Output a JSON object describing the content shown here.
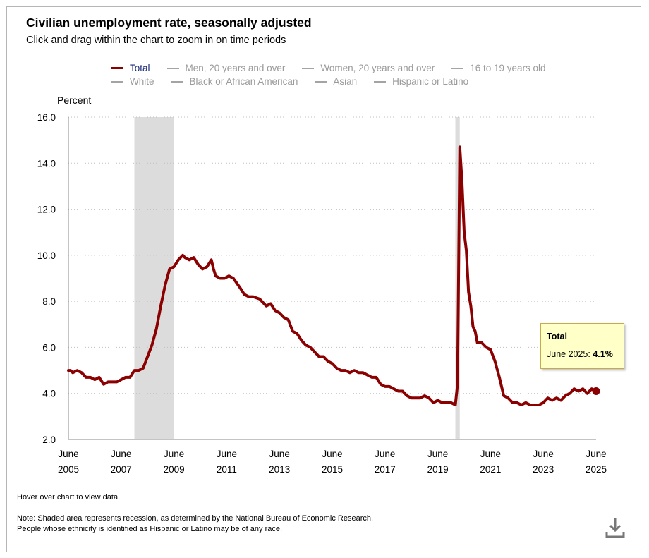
{
  "chart_data": {
    "type": "line",
    "title": "Civilian unemployment rate, seasonally adjusted",
    "subtitle": "Click and drag within the chart to zoom in on time periods",
    "ylabel": "Percent",
    "xlabel": "",
    "ylim": [
      2.0,
      16.0
    ],
    "yticks": [
      "2.0",
      "4.0",
      "6.0",
      "8.0",
      "10.0",
      "12.0",
      "14.0",
      "16.0"
    ],
    "xticks": [
      {
        "month": "June",
        "year": "2005"
      },
      {
        "month": "June",
        "year": "2007"
      },
      {
        "month": "June",
        "year": "2009"
      },
      {
        "month": "June",
        "year": "2011"
      },
      {
        "month": "June",
        "year": "2013"
      },
      {
        "month": "June",
        "year": "2015"
      },
      {
        "month": "June",
        "year": "2017"
      },
      {
        "month": "June",
        "year": "2019"
      },
      {
        "month": "June",
        "year": "2021"
      },
      {
        "month": "June",
        "year": "2023"
      },
      {
        "month": "June",
        "year": "2025"
      }
    ],
    "grid": true,
    "legend": [
      {
        "label": "Total",
        "active": true
      },
      {
        "label": "Men, 20 years and over",
        "active": false
      },
      {
        "label": "Women, 20 years and over",
        "active": false
      },
      {
        "label": "16 to 19 years old",
        "active": false
      },
      {
        "label": "White",
        "active": false
      },
      {
        "label": "Black or African American",
        "active": false
      },
      {
        "label": "Asian",
        "active": false
      },
      {
        "label": "Hispanic or Latino",
        "active": false
      }
    ],
    "recessions": [
      {
        "start": 2007.917,
        "end": 2009.417
      },
      {
        "start": 2020.083,
        "end": 2020.25
      }
    ],
    "series": [
      {
        "name": "Total",
        "color": "#8b0000",
        "x": [
          2005.417,
          2005.5,
          2005.583,
          2005.75,
          2005.917,
          2006.083,
          2006.25,
          2006.417,
          2006.583,
          2006.75,
          2006.917,
          2007.083,
          2007.25,
          2007.417,
          2007.583,
          2007.75,
          2007.917,
          2008.083,
          2008.25,
          2008.417,
          2008.583,
          2008.75,
          2008.917,
          2009.083,
          2009.25,
          2009.417,
          2009.583,
          2009.75,
          2009.833,
          2010.0,
          2010.167,
          2010.333,
          2010.5,
          2010.667,
          2010.833,
          2010.917,
          2011.0,
          2011.167,
          2011.333,
          2011.5,
          2011.667,
          2011.917,
          2012.083,
          2012.25,
          2012.417,
          2012.667,
          2012.917,
          2013.083,
          2013.25,
          2013.417,
          2013.583,
          2013.75,
          2013.917,
          2014.083,
          2014.25,
          2014.417,
          2014.583,
          2014.75,
          2014.917,
          2015.083,
          2015.25,
          2015.417,
          2015.583,
          2015.75,
          2015.917,
          2016.083,
          2016.25,
          2016.417,
          2016.583,
          2016.75,
          2016.917,
          2017.083,
          2017.25,
          2017.417,
          2017.583,
          2017.75,
          2017.917,
          2018.083,
          2018.25,
          2018.417,
          2018.583,
          2018.75,
          2018.917,
          2019.083,
          2019.25,
          2019.417,
          2019.583,
          2019.75,
          2019.917,
          2020.083,
          2020.167,
          2020.25,
          2020.333,
          2020.417,
          2020.5,
          2020.583,
          2020.667,
          2020.75,
          2020.833,
          2020.917,
          2021.083,
          2021.25,
          2021.417,
          2021.583,
          2021.75,
          2021.917,
          2022.083,
          2022.25,
          2022.417,
          2022.583,
          2022.75,
          2022.917,
          2023.083,
          2023.25,
          2023.417,
          2023.583,
          2023.75,
          2023.917,
          2024.083,
          2024.25,
          2024.417,
          2024.583,
          2024.75,
          2024.917,
          2025.083,
          2025.25,
          2025.417
        ],
        "values": [
          5.0,
          5.0,
          4.9,
          5.0,
          4.9,
          4.7,
          4.7,
          4.6,
          4.7,
          4.4,
          4.5,
          4.5,
          4.5,
          4.6,
          4.7,
          4.7,
          5.0,
          5.0,
          5.1,
          5.6,
          6.1,
          6.8,
          7.8,
          8.7,
          9.4,
          9.5,
          9.8,
          10.0,
          9.9,
          9.8,
          9.9,
          9.6,
          9.4,
          9.5,
          9.8,
          9.4,
          9.1,
          9.0,
          9.0,
          9.1,
          9.0,
          8.6,
          8.3,
          8.2,
          8.2,
          8.1,
          7.8,
          7.9,
          7.6,
          7.5,
          7.3,
          7.2,
          6.7,
          6.6,
          6.3,
          6.1,
          6.0,
          5.8,
          5.6,
          5.6,
          5.4,
          5.3,
          5.1,
          5.0,
          5.0,
          4.9,
          5.0,
          4.9,
          4.9,
          4.8,
          4.7,
          4.7,
          4.4,
          4.3,
          4.3,
          4.2,
          4.1,
          4.1,
          3.9,
          3.8,
          3.8,
          3.8,
          3.9,
          3.8,
          3.6,
          3.7,
          3.6,
          3.6,
          3.6,
          3.5,
          4.4,
          14.7,
          13.2,
          11.0,
          10.2,
          8.4,
          7.8,
          6.9,
          6.7,
          6.2,
          6.2,
          6.0,
          5.9,
          5.4,
          4.7,
          3.9,
          3.8,
          3.6,
          3.6,
          3.5,
          3.6,
          3.5,
          3.5,
          3.5,
          3.6,
          3.8,
          3.7,
          3.8,
          3.7,
          3.9,
          4.0,
          4.2,
          4.1,
          4.2,
          4.0,
          4.2,
          4.1
        ]
      }
    ],
    "highlight": {
      "x": 2025.417,
      "value": 4.1
    }
  },
  "tooltip": {
    "title": "Total",
    "label": "June 2025: ",
    "value": "4.1%"
  },
  "notes": {
    "hover": "Hover over chart to view data.",
    "note1": "Note: Shaded area represents recession, as determined by the National Bureau of Economic Research.",
    "note2": "People whose ethnicity is identified as Hispanic or Latino may be of any race."
  },
  "icons": {
    "download": "download-icon"
  }
}
